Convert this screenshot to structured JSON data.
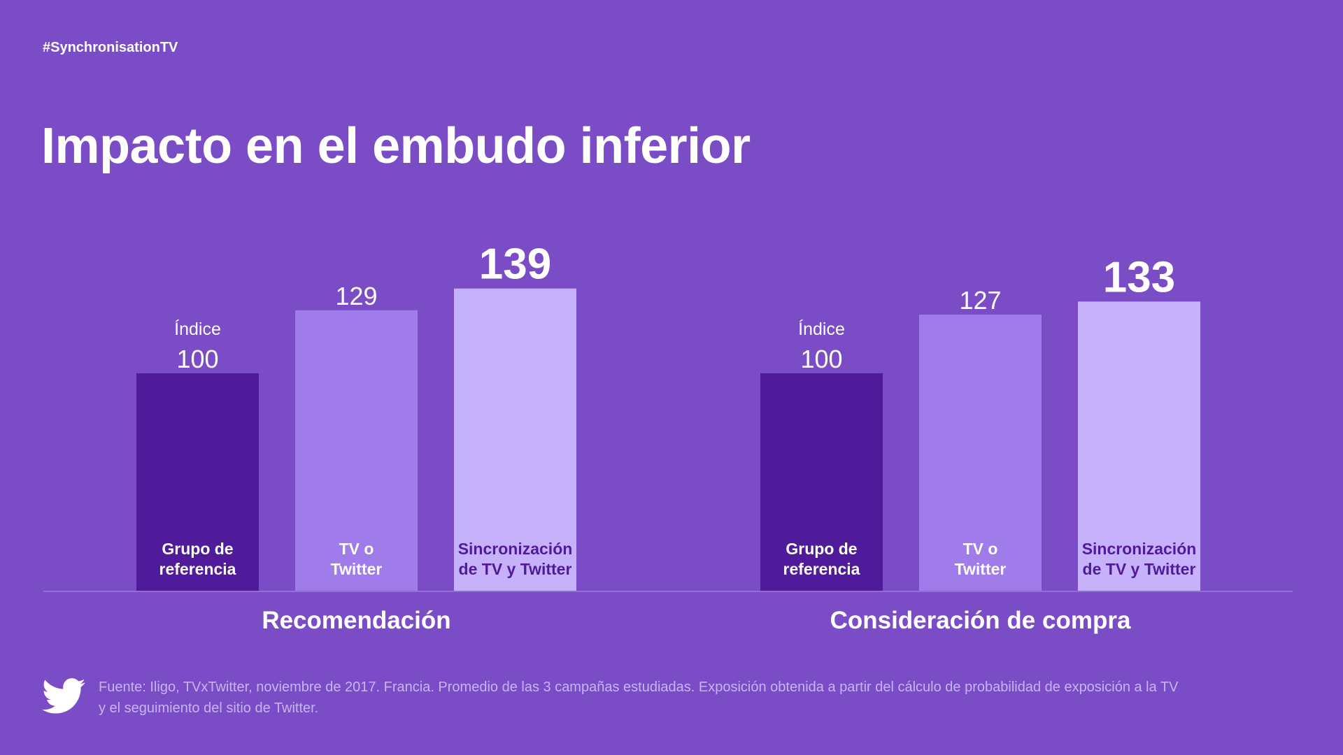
{
  "header": {
    "hashtag": "#SynchronisationTV",
    "title": "Impacto en el embudo inferior"
  },
  "chart_data": {
    "type": "bar",
    "index_label": "Índice",
    "categories": [
      "Grupo de referencia",
      "TV o Twitter",
      "Sincronización de TV y Twitter"
    ],
    "category_lines": [
      [
        "Grupo de",
        "referencia"
      ],
      [
        "TV o",
        "Twitter"
      ],
      [
        "Sincronización",
        "de TV y Twitter"
      ]
    ],
    "groups": [
      {
        "name": "Recomendación",
        "values": [
          100,
          129,
          139
        ]
      },
      {
        "name": "Consideración de compra",
        "values": [
          100,
          127,
          133
        ]
      }
    ],
    "colors": [
      "#4f1b9a",
      "#a07cea",
      "#c6b2fa"
    ],
    "label_colors": [
      "#ffffff",
      "#ffffff",
      "#4f1b9a"
    ]
  },
  "footer": {
    "icon": "twitter-bird-icon",
    "line1": "Fuente: Iligo, TVxTwitter, noviembre de 2017. Francia. Promedio de las 3 campañas estudiadas. Exposición obtenida a partir del cálculo de probabilidad de exposición a la TV",
    "line2": "y el seguimiento del sitio de Twitter."
  }
}
